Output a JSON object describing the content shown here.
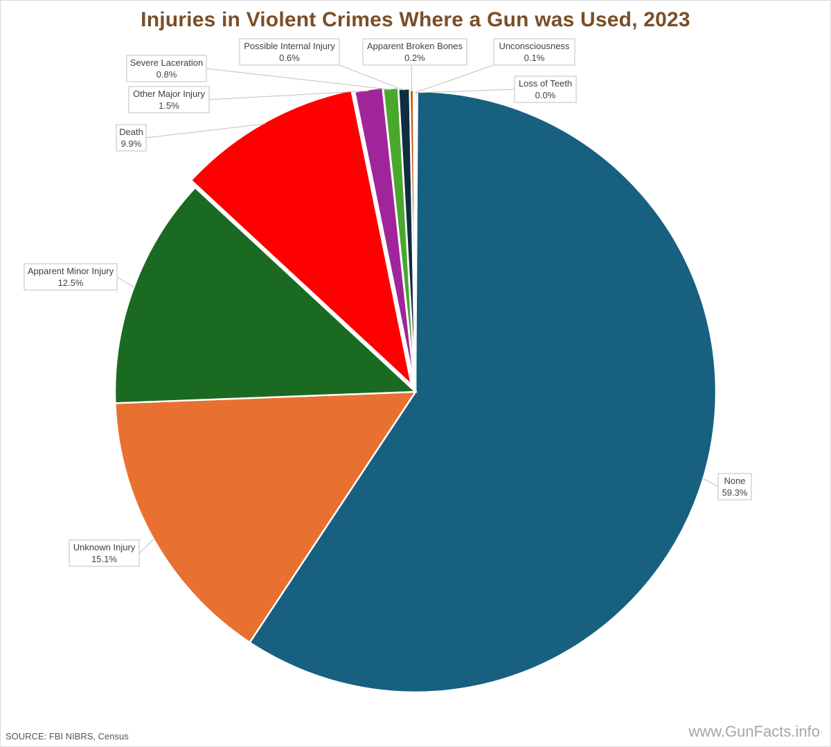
{
  "title": "Injuries in Violent Crimes Where a Gun was Used, 2023",
  "source": "SOURCE: FBI NIBRS, Census",
  "watermark": "www.GunFacts.info",
  "chart_data": {
    "type": "pie",
    "title": "Injuries in Violent Crimes Where a Gun was Used, 2023",
    "slices": [
      {
        "label": "None",
        "value": 59.3,
        "value_label": "59.3%",
        "color": "#17607f"
      },
      {
        "label": "Unknown Injury",
        "value": 15.1,
        "value_label": "15.1%",
        "color": "#e87031"
      },
      {
        "label": "Apparent Minor Injury",
        "value": 12.5,
        "value_label": "12.5%",
        "color": "#1b6a22"
      },
      {
        "label": "Death",
        "value": 9.9,
        "value_label": "9.9%",
        "color": "#ff0000"
      },
      {
        "label": "Other Major Injury",
        "value": 1.5,
        "value_label": "1.5%",
        "color": "#a0259b"
      },
      {
        "label": "Severe Laceration",
        "value": 0.8,
        "value_label": "0.8%",
        "color": "#4aa72e"
      },
      {
        "label": "Possible Internal Injury",
        "value": 0.6,
        "value_label": "0.6%",
        "color": "#0f2d3f"
      },
      {
        "label": "Apparent Broken Bones",
        "value": 0.2,
        "value_label": "0.2%",
        "color": "#c55a11"
      },
      {
        "label": "Unconsciousness",
        "value": 0.1,
        "value_label": "0.1%",
        "color": "#7f3f00"
      },
      {
        "label": "Loss of Teeth",
        "value": 0.0,
        "value_label": "0.0%",
        "color": "#333333"
      }
    ]
  }
}
